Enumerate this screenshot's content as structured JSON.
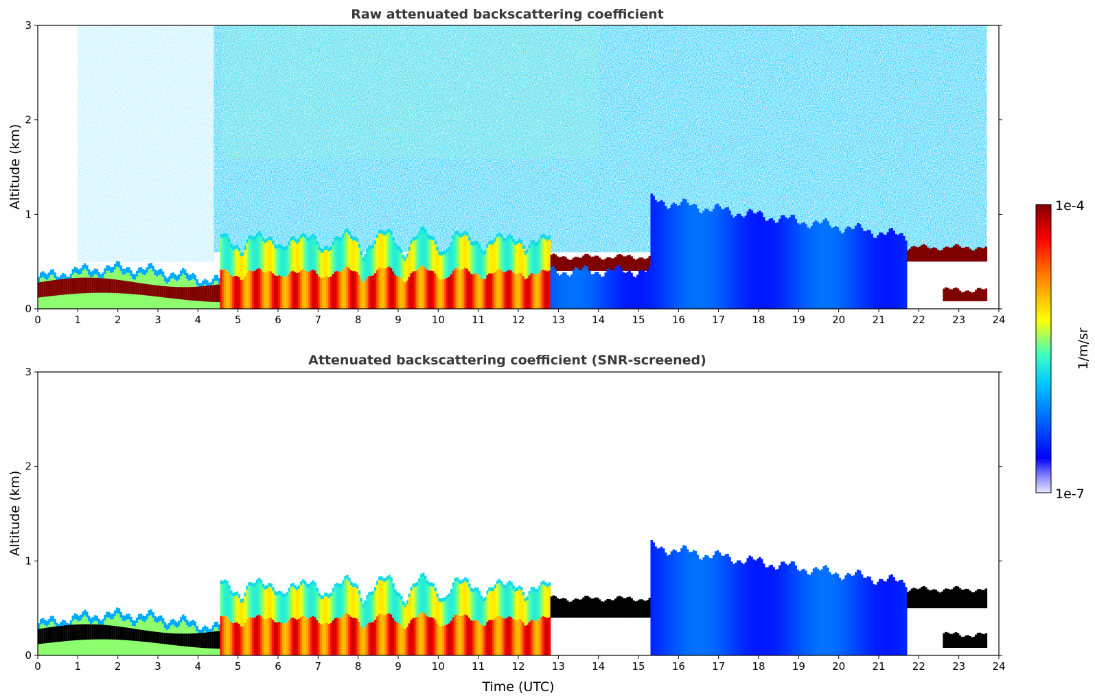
{
  "chart_data": [
    {
      "type": "heatmap",
      "title": "Raw attenuated backscattering coefficient",
      "xlabel": "",
      "ylabel": "Altitude (km)",
      "xlim": [
        0,
        24
      ],
      "ylim": [
        0,
        3
      ],
      "xticks": [
        "0",
        "1",
        "2",
        "3",
        "4",
        "5",
        "6",
        "7",
        "8",
        "9",
        "10",
        "11",
        "12",
        "13",
        "14",
        "15",
        "16",
        "17",
        "18",
        "19",
        "20",
        "21",
        "22",
        "23",
        "24"
      ],
      "yticks": [
        "0",
        "1",
        "2",
        "3"
      ],
      "layers": [
        {
          "name": "surface layer",
          "t_start": 0,
          "t_end": 4.5,
          "base_km": 0.0,
          "top_km": 0.4,
          "log10_value": -4.0
        },
        {
          "name": "mixed layer",
          "t_start": 4.5,
          "t_end": 12.8,
          "base_km": 0.0,
          "top_km": 0.75,
          "log10_value": -4.3
        },
        {
          "name": "layer top",
          "t_start": 12.8,
          "t_end": 15.3,
          "base_km": 0.4,
          "top_km": 0.55,
          "log10_value": -4.0
        },
        {
          "name": "residual aerosol",
          "t_start": 12.8,
          "t_end": 21.7,
          "base_km": 0.0,
          "top_km": 1.1,
          "log10_value": -6.0
        },
        {
          "name": "night layer",
          "t_start": 21.7,
          "t_end": 23.7,
          "base_km": 0.5,
          "top_km": 0.65,
          "log10_value": -4.0
        },
        {
          "name": "low night layer",
          "t_start": 22.6,
          "t_end": 23.7,
          "base_km": 0.08,
          "top_km": 0.2,
          "log10_value": -4.0
        }
      ]
    },
    {
      "type": "heatmap",
      "title": "Attenuated backscattering coefficient (SNR-screened)",
      "xlabel": "Time (UTC)",
      "ylabel": "Altitude (km)",
      "xlim": [
        0,
        24
      ],
      "ylim": [
        0,
        3
      ],
      "xticks": [
        "0",
        "1",
        "2",
        "3",
        "4",
        "5",
        "6",
        "7",
        "8",
        "9",
        "10",
        "11",
        "12",
        "13",
        "14",
        "15",
        "16",
        "17",
        "18",
        "19",
        "20",
        "21",
        "22",
        "23",
        "24"
      ],
      "yticks": [
        "0",
        "1",
        "2",
        "3"
      ],
      "layers": [
        {
          "name": "surface layer",
          "t_start": 0,
          "t_end": 4.5,
          "base_km": 0.0,
          "top_km": 0.45,
          "log10_value": -4.0
        },
        {
          "name": "mixed layer",
          "t_start": 4.5,
          "t_end": 12.8,
          "base_km": 0.0,
          "top_km": 0.8,
          "log10_value": -4.3
        },
        {
          "name": "layer top",
          "t_start": 12.8,
          "t_end": 15.3,
          "base_km": 0.4,
          "top_km": 0.6,
          "log10_value": -4.0
        },
        {
          "name": "residual aerosol",
          "t_start": 15.3,
          "t_end": 21.7,
          "base_km": 0.0,
          "top_km": 1.15,
          "log10_value": -6.0
        },
        {
          "name": "night layer",
          "t_start": 21.7,
          "t_end": 23.7,
          "base_km": 0.5,
          "top_km": 0.7,
          "log10_value": -4.0
        },
        {
          "name": "low night layer",
          "t_start": 22.6,
          "t_end": 23.7,
          "base_km": 0.08,
          "top_km": 0.22,
          "log10_value": -4.0
        }
      ]
    }
  ],
  "colorbar": {
    "label": "1/m/sr",
    "max_label": "1e-4",
    "min_label": "1e-7",
    "colormap": "jet",
    "stops": [
      "#000080",
      "#0000ff",
      "#00ffff",
      "#80ff80",
      "#ffff00",
      "#ff0000",
      "#800000"
    ]
  },
  "colors": {
    "background": "#ffffff",
    "axis": "#000000",
    "title": "#3a3a3a",
    "saturated": "#000000"
  }
}
